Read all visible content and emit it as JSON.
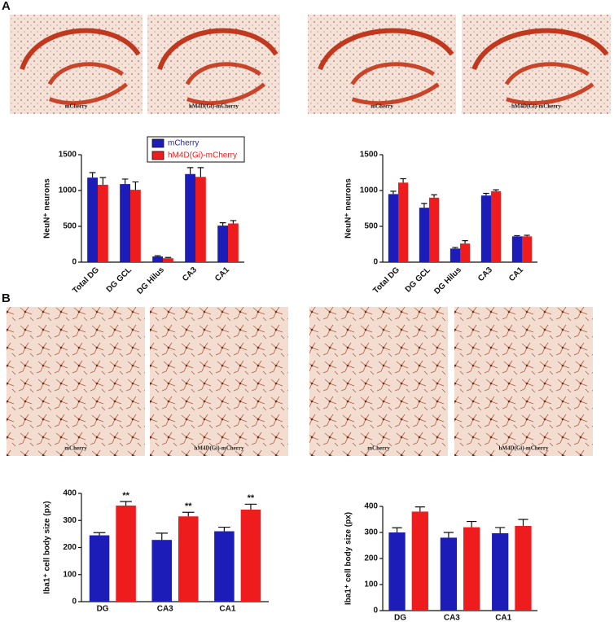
{
  "panels": [
    {
      "label": "A",
      "images": [
        "mCherry",
        "hM4D(Gi)-mCherry",
        "mCherry",
        "hM4D(Gi)-mCherry"
      ]
    },
    {
      "label": "B",
      "images": [
        "mCherry",
        "hM4D(Gi)-mCherry",
        "mCherry",
        "hM4D(Gi)-mCherry"
      ]
    }
  ],
  "chart_data": [
    {
      "type": "bar",
      "y_label": "NeuN⁺ neurons",
      "rotated_labels": true,
      "legend": "top",
      "categories": [
        "Total DG",
        "DG GCL",
        "DG Hilus",
        "CA3",
        "CA1"
      ],
      "series": [
        {
          "name": "mCherry",
          "color": "#1c1cb8",
          "values": [
            1180,
            1090,
            80,
            1230,
            510
          ],
          "errors": [
            70,
            70,
            10,
            90,
            40
          ]
        },
        {
          "name": "hM4D(Gi)-mCherry",
          "color": "#ee1c1c",
          "values": [
            1080,
            1010,
            55,
            1190,
            540
          ],
          "errors": [
            100,
            110,
            10,
            130,
            40
          ]
        }
      ],
      "ylim": [
        0,
        1500
      ],
      "yticks": [
        0,
        500,
        1000,
        1500
      ]
    },
    {
      "type": "bar",
      "y_label": "NeuN⁺ neurons",
      "rotated_labels": true,
      "categories": [
        "Total DG",
        "DG GCL",
        "DG Hilus",
        "CA3",
        "CA1"
      ],
      "series": [
        {
          "color": "#1c1cb8",
          "values": [
            950,
            760,
            190,
            930,
            360
          ],
          "errors": [
            40,
            60,
            15,
            30,
            10
          ]
        },
        {
          "color": "#ee1c1c",
          "values": [
            1110,
            900,
            260,
            990,
            360
          ],
          "errors": [
            55,
            40,
            40,
            20,
            15
          ]
        }
      ],
      "ylim": [
        0,
        1500
      ],
      "yticks": [
        0,
        500,
        1000,
        1500
      ]
    },
    {
      "type": "bar",
      "y_label": "Iba1⁺ cell body size (px)",
      "rotated_labels": false,
      "categories": [
        "DG",
        "CA3",
        "CA1"
      ],
      "series": [
        {
          "color": "#1c1cb8",
          "values": [
            245,
            228,
            260
          ],
          "errors": [
            10,
            25,
            15
          ]
        },
        {
          "color": "#ee1c1c",
          "values": [
            355,
            315,
            340
          ],
          "errors": [
            15,
            15,
            20
          ],
          "significance": [
            "**",
            "**",
            "**"
          ]
        }
      ],
      "ylim": [
        0,
        400
      ],
      "yticks": [
        0,
        100,
        200,
        300,
        400
      ]
    },
    {
      "type": "bar",
      "y_label": "Iba1⁺ cell body size (px)",
      "rotated_labels": false,
      "categories": [
        "DG",
        "CA3",
        "CA1"
      ],
      "series": [
        {
          "color": "#1c1cb8",
          "values": [
            300,
            280,
            297
          ],
          "errors": [
            18,
            20,
            22
          ]
        },
        {
          "color": "#ee1c1c",
          "values": [
            380,
            320,
            325
          ],
          "errors": [
            18,
            22,
            25
          ]
        }
      ],
      "ylim": [
        0,
        400
      ],
      "yticks": [
        0,
        100,
        200,
        300,
        400
      ]
    }
  ]
}
